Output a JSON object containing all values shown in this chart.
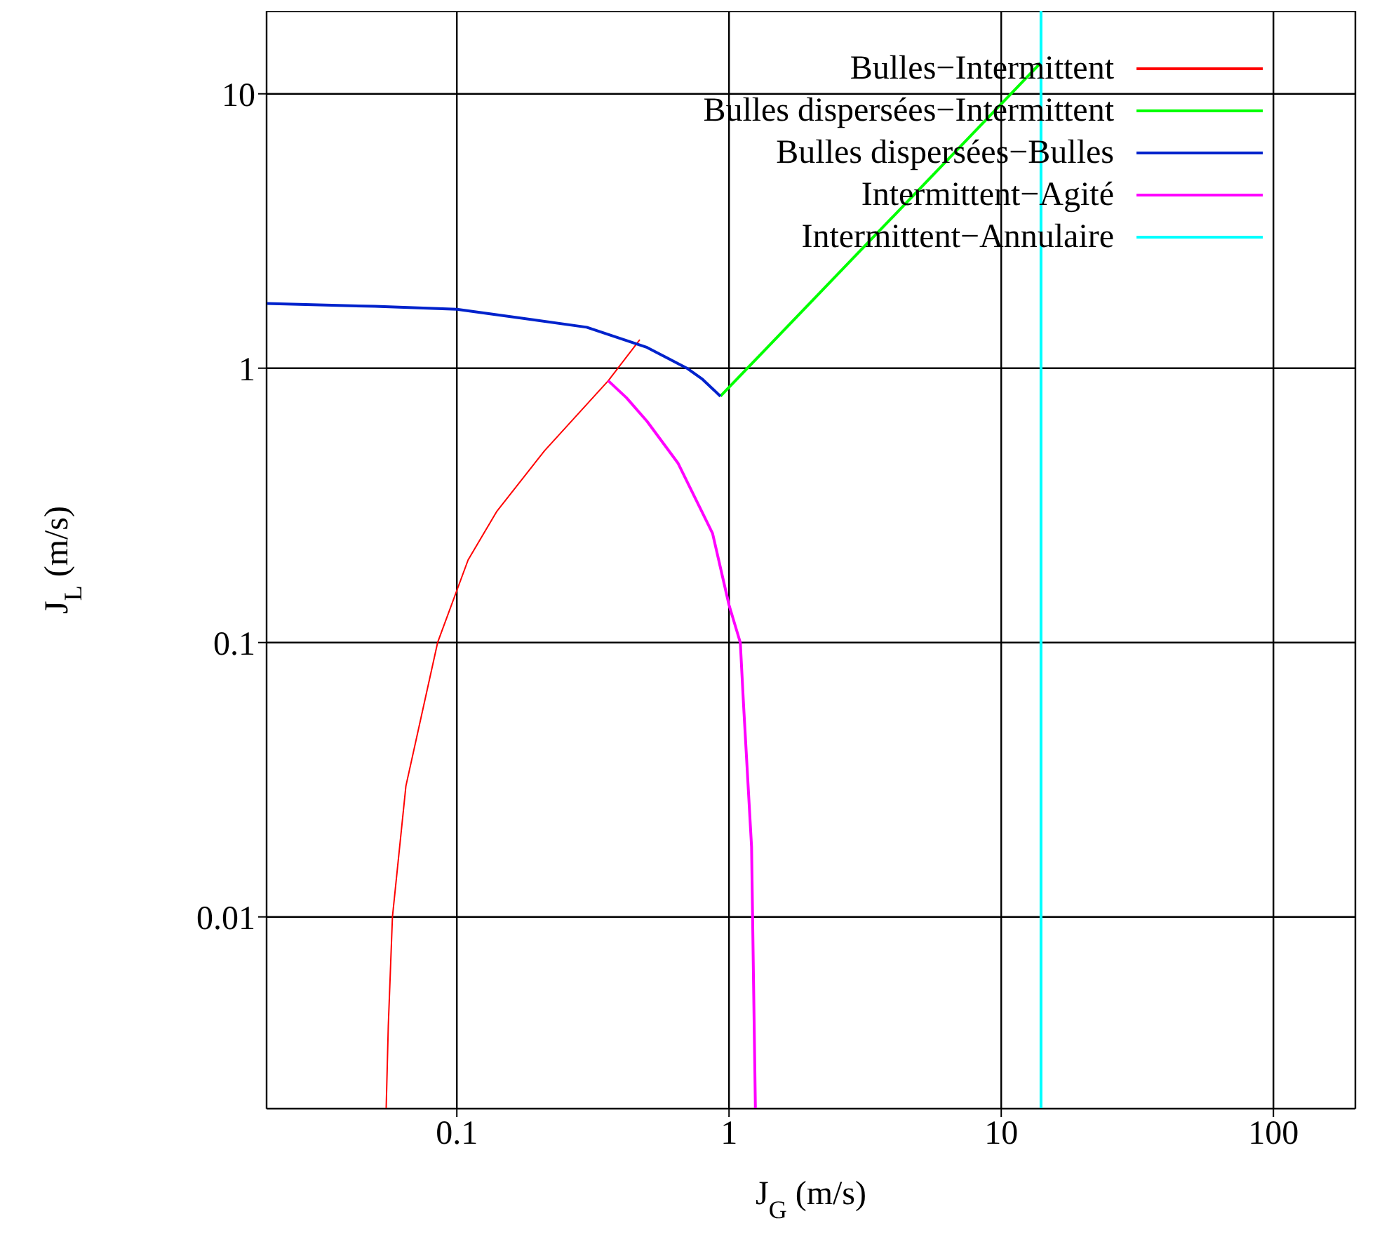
{
  "chart_data": {
    "type": "line",
    "xlabel": "J$_{G}$ (m/s)",
    "ylabel": "J$_{L}$ (m/s)",
    "log": "xy",
    "xlim": [
      0.02,
      200
    ],
    "ylim": [
      0.002,
      20
    ],
    "xticks": [
      0.1,
      1,
      10,
      100
    ],
    "yticks": [
      0.01,
      0.1,
      1,
      10
    ],
    "grid": true,
    "legend": "top right",
    "marker": "none",
    "line_style": "solid",
    "series": [
      {
        "name": "Bulles−Intermittent",
        "color": "#ff0000",
        "x": [
          0.055,
          0.056,
          0.058,
          0.065,
          0.085,
          0.11,
          0.14,
          0.21,
          0.36,
          0.47
        ],
        "values": [
          0.002,
          0.004,
          0.01,
          0.03,
          0.1,
          0.2,
          0.3,
          0.5,
          0.9,
          1.27
        ]
      },
      {
        "name": "Bulles dispersées−Intermittent",
        "color": "#00ff00",
        "x": [
          0.93,
          14
        ],
        "values": [
          0.79,
          13
        ]
      },
      {
        "name": "Bulles dispersées−Bulles",
        "color": "#0022cc",
        "x": [
          0.02,
          0.05,
          0.1,
          0.3,
          0.5,
          0.7,
          0.8,
          0.93
        ],
        "values": [
          1.72,
          1.68,
          1.64,
          1.41,
          1.19,
          1.0,
          0.91,
          0.79
        ]
      },
      {
        "name": "Intermittent−Agité",
        "color": "#ff00ff",
        "x": [
          0.36,
          0.42,
          0.5,
          0.65,
          0.87,
          1.0,
          1.1,
          1.13,
          1.21,
          1.25
        ],
        "values": [
          0.9,
          0.78,
          0.64,
          0.45,
          0.25,
          0.137,
          0.1,
          0.06,
          0.018,
          0.002
        ]
      },
      {
        "name": "Intermittent−Annulaire",
        "color": "#00ffff",
        "x": [
          14,
          14
        ],
        "values": [
          0.002,
          20
        ]
      }
    ]
  }
}
